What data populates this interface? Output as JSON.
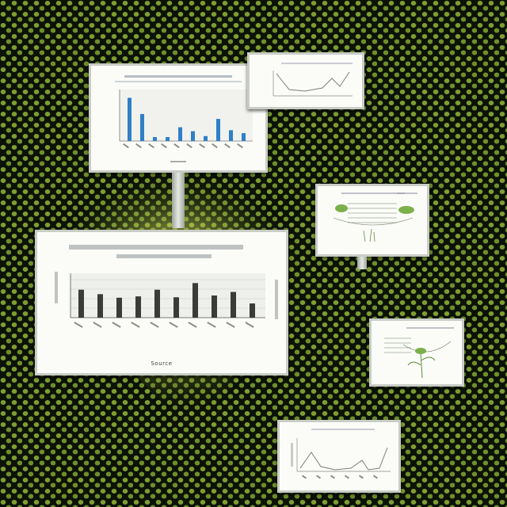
{
  "scene": {
    "bg_color": "#0c1206",
    "dot_color": "#8aa838",
    "glow_color": "#e3ef7c",
    "board_fill": "#fbfcf8",
    "board_border": "#c9cdc6"
  },
  "boards": {
    "top_chart": {
      "bar_color": "#2f7fc6",
      "series": [
        0.88,
        0.55,
        0.08,
        0.08,
        0.28,
        0.2,
        0.1,
        0.45,
        0.22,
        0.16
      ]
    },
    "main_chart": {
      "bar_color": "#3a3c38",
      "series": [
        0.63,
        0.53,
        0.45,
        0.48,
        0.63,
        0.46,
        0.78,
        0.5,
        0.58,
        0.32
      ],
      "footer": "Source"
    },
    "small_line": {
      "line_color": "#7a7f78"
    },
    "bottom_line": {
      "line_color": "#7a7f78"
    },
    "sketch_1": {
      "ink_color": "#5a6a4a",
      "plant_color": "#7cb04a"
    },
    "sketch_2": {
      "ink_color": "#5a6a4a",
      "plant_color": "#7cb04a"
    }
  }
}
